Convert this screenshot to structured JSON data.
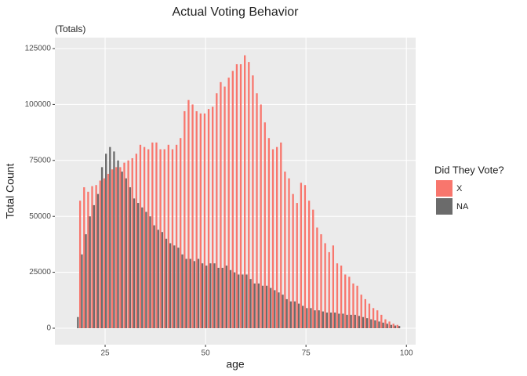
{
  "chart_data": {
    "type": "bar",
    "title": "Actual Voting Behavior",
    "subtitle": "(Totals)",
    "x_label": "age",
    "y_label": "Total Count",
    "legend_title": "Did They Vote?",
    "x": [
      18,
      19,
      20,
      21,
      22,
      23,
      24,
      25,
      26,
      27,
      28,
      29,
      30,
      31,
      32,
      33,
      34,
      35,
      36,
      37,
      38,
      39,
      40,
      41,
      42,
      43,
      44,
      45,
      46,
      47,
      48,
      49,
      50,
      51,
      52,
      53,
      54,
      55,
      56,
      57,
      58,
      59,
      60,
      61,
      62,
      63,
      64,
      65,
      66,
      67,
      68,
      69,
      70,
      71,
      72,
      73,
      74,
      75,
      76,
      77,
      78,
      79,
      80,
      81,
      82,
      83,
      84,
      85,
      86,
      87,
      88,
      89,
      90,
      91,
      92,
      93,
      94,
      95,
      96,
      97,
      98
    ],
    "series": [
      {
        "name": "X",
        "color": "#f8766d",
        "values": [
          null,
          57000,
          63000,
          61000,
          63500,
          64000,
          66000,
          67000,
          69000,
          71000,
          72000,
          72000,
          74000,
          75000,
          76000,
          78000,
          82000,
          81000,
          80000,
          83000,
          83000,
          80000,
          80000,
          82000,
          80000,
          82000,
          85000,
          97000,
          102000,
          100000,
          97000,
          96000,
          96000,
          98000,
          99000,
          105000,
          110000,
          108000,
          112000,
          115000,
          118000,
          118000,
          122000,
          119000,
          113000,
          105000,
          100000,
          92000,
          85000,
          80000,
          81000,
          83000,
          70000,
          67000,
          60000,
          56000,
          65000,
          64000,
          57000,
          53000,
          45000,
          42000,
          38000,
          34000,
          37000,
          29000,
          28000,
          24000,
          23000,
          20000,
          19000,
          15000,
          13000,
          11000,
          9000,
          8000,
          6000,
          4000,
          3000,
          2000,
          1500
        ]
      },
      {
        "name": "NA",
        "color": "#6b6b6b",
        "values": [
          5000,
          33000,
          42000,
          50000,
          55000,
          60000,
          72000,
          78000,
          81000,
          79000,
          75000,
          70000,
          67000,
          63000,
          58000,
          56000,
          54000,
          52000,
          50000,
          46000,
          44000,
          43000,
          40000,
          38000,
          37000,
          36000,
          33000,
          31000,
          31000,
          30000,
          31000,
          29000,
          28000,
          29000,
          29000,
          27000,
          27000,
          28000,
          26000,
          25000,
          24000,
          24000,
          24000,
          22000,
          20000,
          20000,
          19000,
          19000,
          18000,
          17000,
          16000,
          15000,
          13000,
          12000,
          12000,
          11000,
          10000,
          9000,
          9000,
          8000,
          8000,
          7500,
          7000,
          7000,
          7000,
          6500,
          6500,
          6000,
          6000,
          6000,
          5500,
          5000,
          4500,
          4000,
          3500,
          3000,
          2500,
          2000,
          1500,
          1200,
          1000
        ]
      }
    ],
    "xlim": [
      12.5,
      102.3
    ],
    "xticks": [
      25,
      50,
      75,
      100
    ],
    "ylim": [
      -7350,
      129900
    ],
    "yticks": [
      0,
      25000,
      50000,
      75000,
      100000,
      125000
    ],
    "grid": true
  }
}
